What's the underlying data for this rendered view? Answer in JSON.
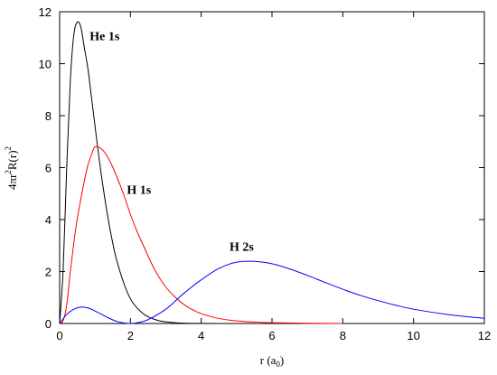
{
  "chart_data": {
    "type": "line",
    "title": "",
    "xlabel": {
      "main": "r (a",
      "sub": "0",
      "close": ")"
    },
    "ylabel": {
      "p1": "4πr",
      "sup1": "2",
      "p2": "R(r)",
      "sup2": "2"
    },
    "xlim": [
      0,
      12
    ],
    "ylim": [
      0,
      12
    ],
    "xticks": [
      "0",
      "2",
      "4",
      "6",
      "8",
      "10",
      "12"
    ],
    "yticks": [
      "0",
      "2",
      "4",
      "6",
      "8",
      "10",
      "12"
    ],
    "grid": false,
    "legend": "none",
    "series": [
      {
        "name": "He 1s",
        "color": "#000000",
        "x": [
          0,
          0.1,
          0.2,
          0.3,
          0.4,
          0.5,
          0.6,
          0.7,
          0.8,
          0.9,
          1.0,
          1.1,
          1.2,
          1.3,
          1.4,
          1.5,
          1.6,
          1.8,
          2.0,
          2.2,
          2.4,
          2.6,
          2.8,
          3.0,
          3.2,
          3.5,
          4.0,
          4.5,
          5.0,
          6.0,
          8.0,
          12.0
        ],
        "y": [
          0,
          2.1,
          6.0,
          9.3,
          11.1,
          11.6,
          11.4,
          10.6,
          9.8,
          8.7,
          7.6,
          6.5,
          5.5,
          4.6,
          3.8,
          3.1,
          2.5,
          1.6,
          0.95,
          0.58,
          0.34,
          0.2,
          0.11,
          0.065,
          0.035,
          0.015,
          0.004,
          0.001,
          0,
          0,
          0,
          0
        ]
      },
      {
        "name": "H 1s",
        "color": "#ff0000",
        "x": [
          0,
          0.1,
          0.2,
          0.3,
          0.4,
          0.5,
          0.6,
          0.7,
          0.8,
          0.9,
          1.0,
          1.2,
          1.4,
          1.6,
          1.8,
          2.0,
          2.2,
          2.4,
          2.6,
          2.8,
          3.0,
          3.2,
          3.4,
          3.6,
          3.8,
          4.0,
          4.4,
          4.8,
          5.2,
          5.6,
          6.0,
          7.0,
          8.0
        ],
        "y": [
          0,
          0.11,
          0.71,
          1.98,
          3.1,
          4.05,
          4.8,
          5.5,
          6.1,
          6.5,
          6.8,
          6.7,
          6.3,
          5.7,
          5.0,
          4.2,
          3.5,
          2.9,
          2.3,
          1.8,
          1.4,
          1.1,
          0.85,
          0.65,
          0.5,
          0.38,
          0.22,
          0.13,
          0.08,
          0.05,
          0.03,
          0.01,
          0
        ]
      },
      {
        "name": "H 2s",
        "color": "#0000ff",
        "x": [
          0,
          0.2,
          0.4,
          0.6,
          0.8,
          1.0,
          1.2,
          1.4,
          1.6,
          1.8,
          2.0,
          2.2,
          2.5,
          3.0,
          3.5,
          4.0,
          4.5,
          5.0,
          5.5,
          6.0,
          6.5,
          7.0,
          7.5,
          8.0,
          8.5,
          9.0,
          9.5,
          10.0,
          11.0,
          12.0
        ],
        "y": [
          0,
          0.35,
          0.55,
          0.63,
          0.6,
          0.48,
          0.34,
          0.2,
          0.09,
          0.02,
          0,
          0.03,
          0.15,
          0.55,
          1.15,
          1.68,
          2.12,
          2.36,
          2.39,
          2.3,
          2.1,
          1.85,
          1.58,
          1.32,
          1.08,
          0.88,
          0.7,
          0.55,
          0.34,
          0.2
        ]
      }
    ],
    "annotations": [
      {
        "text": "He 1s",
        "x": 0.85,
        "y": 10.9
      },
      {
        "text": "H 1s",
        "x": 1.9,
        "y": 5.0
      },
      {
        "text": "H 2s",
        "x": 4.8,
        "y": 2.8
      }
    ]
  }
}
